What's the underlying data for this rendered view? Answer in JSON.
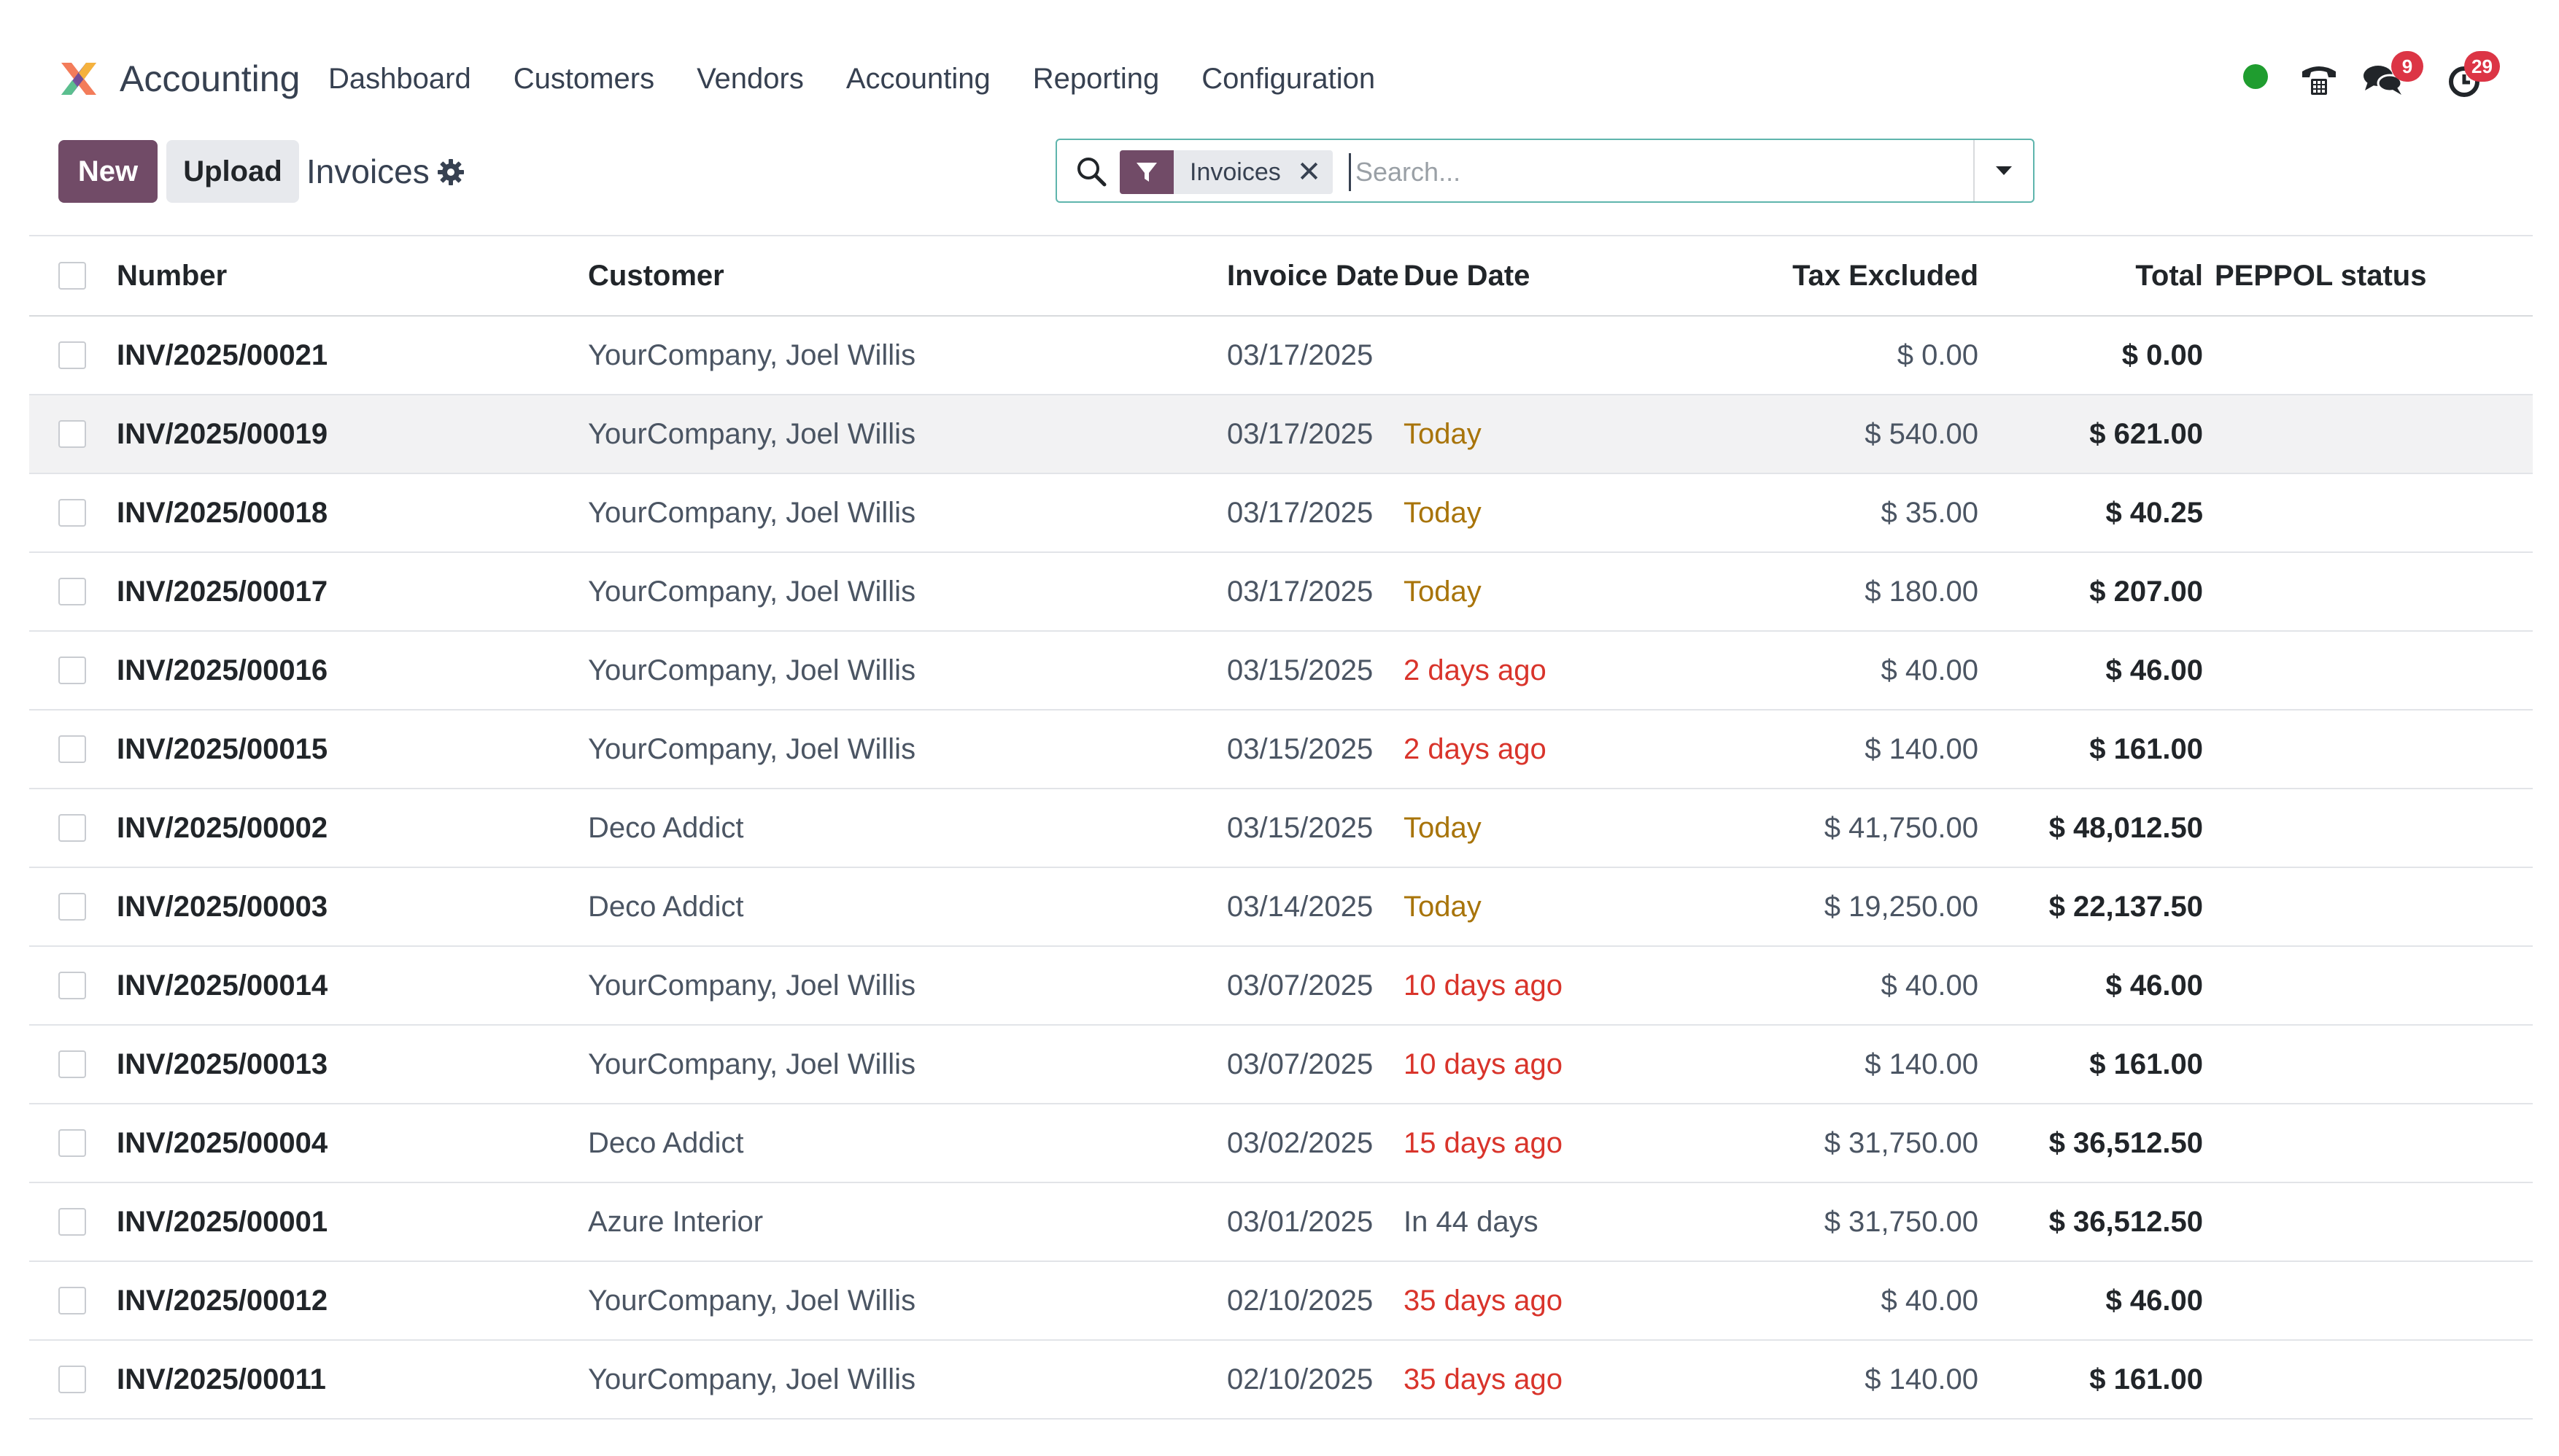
{
  "app": {
    "name": "Accounting",
    "menu": [
      "Dashboard",
      "Customers",
      "Vendors",
      "Accounting",
      "Reporting",
      "Configuration"
    ]
  },
  "systray": {
    "presence_color": "#1f9d2f",
    "messages_count": "9",
    "activities_count": "29",
    "icons": [
      "phone-icon",
      "chat-icon",
      "clock-icon"
    ]
  },
  "control": {
    "new_label": "New",
    "upload_label": "Upload",
    "title": "Invoices"
  },
  "search": {
    "facet_label": "Invoices",
    "placeholder": "Search...",
    "value": ""
  },
  "table": {
    "columns": {
      "number": "Number",
      "customer": "Customer",
      "invoice_date": "Invoice Date",
      "due_date": "Due Date",
      "tax_excluded": "Tax Excluded",
      "total": "Total",
      "peppol": "PEPPOL status"
    },
    "rows": [
      {
        "number": "INV/2025/00021",
        "customer": "YourCompany, Joel Willis",
        "invoice_date": "03/17/2025",
        "due_date": "",
        "due_status": "none",
        "tax_excluded": "$ 0.00",
        "total": "$ 0.00",
        "peppol": ""
      },
      {
        "number": "INV/2025/00019",
        "customer": "YourCompany, Joel Willis",
        "invoice_date": "03/17/2025",
        "due_date": "Today",
        "due_status": "today",
        "tax_excluded": "$ 540.00",
        "total": "$ 621.00",
        "peppol": ""
      },
      {
        "number": "INV/2025/00018",
        "customer": "YourCompany, Joel Willis",
        "invoice_date": "03/17/2025",
        "due_date": "Today",
        "due_status": "today",
        "tax_excluded": "$ 35.00",
        "total": "$ 40.25",
        "peppol": ""
      },
      {
        "number": "INV/2025/00017",
        "customer": "YourCompany, Joel Willis",
        "invoice_date": "03/17/2025",
        "due_date": "Today",
        "due_status": "today",
        "tax_excluded": "$ 180.00",
        "total": "$ 207.00",
        "peppol": ""
      },
      {
        "number": "INV/2025/00016",
        "customer": "YourCompany, Joel Willis",
        "invoice_date": "03/15/2025",
        "due_date": "2 days ago",
        "due_status": "overdue",
        "tax_excluded": "$ 40.00",
        "total": "$ 46.00",
        "peppol": ""
      },
      {
        "number": "INV/2025/00015",
        "customer": "YourCompany, Joel Willis",
        "invoice_date": "03/15/2025",
        "due_date": "2 days ago",
        "due_status": "overdue",
        "tax_excluded": "$ 140.00",
        "total": "$ 161.00",
        "peppol": ""
      },
      {
        "number": "INV/2025/00002",
        "customer": "Deco Addict",
        "invoice_date": "03/15/2025",
        "due_date": "Today",
        "due_status": "today",
        "tax_excluded": "$ 41,750.00",
        "total": "$ 48,012.50",
        "peppol": ""
      },
      {
        "number": "INV/2025/00003",
        "customer": "Deco Addict",
        "invoice_date": "03/14/2025",
        "due_date": "Today",
        "due_status": "today",
        "tax_excluded": "$ 19,250.00",
        "total": "$ 22,137.50",
        "peppol": ""
      },
      {
        "number": "INV/2025/00014",
        "customer": "YourCompany, Joel Willis",
        "invoice_date": "03/07/2025",
        "due_date": "10 days ago",
        "due_status": "overdue",
        "tax_excluded": "$ 40.00",
        "total": "$ 46.00",
        "peppol": ""
      },
      {
        "number": "INV/2025/00013",
        "customer": "YourCompany, Joel Willis",
        "invoice_date": "03/07/2025",
        "due_date": "10 days ago",
        "due_status": "overdue",
        "tax_excluded": "$ 140.00",
        "total": "$ 161.00",
        "peppol": ""
      },
      {
        "number": "INV/2025/00004",
        "customer": "Deco Addict",
        "invoice_date": "03/02/2025",
        "due_date": "15 days ago",
        "due_status": "overdue",
        "tax_excluded": "$ 31,750.00",
        "total": "$ 36,512.50",
        "peppol": ""
      },
      {
        "number": "INV/2025/00001",
        "customer": "Azure Interior",
        "invoice_date": "03/01/2025",
        "due_date": "In 44 days",
        "due_status": "future",
        "tax_excluded": "$ 31,750.00",
        "total": "$ 36,512.50",
        "peppol": ""
      },
      {
        "number": "INV/2025/00012",
        "customer": "YourCompany, Joel Willis",
        "invoice_date": "02/10/2025",
        "due_date": "35 days ago",
        "due_status": "overdue",
        "tax_excluded": "$ 40.00",
        "total": "$ 46.00",
        "peppol": ""
      },
      {
        "number": "INV/2025/00011",
        "customer": "YourCompany, Joel Willis",
        "invoice_date": "02/10/2025",
        "due_date": "35 days ago",
        "due_status": "overdue",
        "tax_excluded": "$ 140.00",
        "total": "$ 161.00",
        "peppol": ""
      }
    ],
    "hovered_row_index": 1
  },
  "colors": {
    "brand": "#714b67",
    "due_today": "#a8740a",
    "due_overdue": "#d9342b",
    "search_border": "#5fb5ad"
  }
}
